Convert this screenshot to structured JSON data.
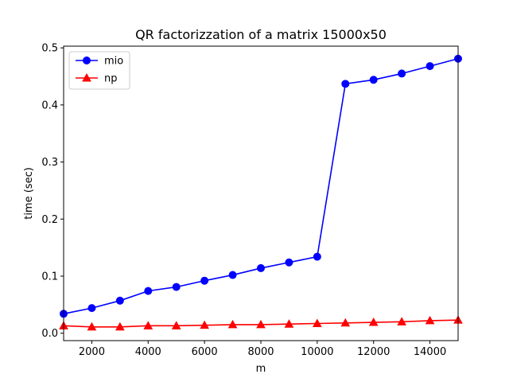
{
  "chart_data": {
    "type": "line",
    "title": "QR factorizzation of a matrix 15000x50",
    "xlabel": "m",
    "ylabel": "time (sec)",
    "xlim": [
      1000,
      15000
    ],
    "ylim": [
      -0.013,
      0.503
    ],
    "xticks": [
      2000,
      4000,
      6000,
      8000,
      10000,
      12000,
      14000
    ],
    "xtick_labels": [
      "2000",
      "4000",
      "6000",
      "8000",
      "10000",
      "12000",
      "14000"
    ],
    "yticks": [
      0.0,
      0.1,
      0.2,
      0.3,
      0.4,
      0.5
    ],
    "ytick_labels": [
      "0.0",
      "0.1",
      "0.2",
      "0.3",
      "0.4",
      "0.5"
    ],
    "grid": false,
    "legend_position": "top-left",
    "x": [
      1000,
      2000,
      3000,
      4000,
      5000,
      6000,
      7000,
      8000,
      9000,
      10000,
      11000,
      12000,
      13000,
      14000,
      15000
    ],
    "series": [
      {
        "name": "mio",
        "color": "#0000ff",
        "marker": "circle",
        "values": [
          0.034,
          0.044,
          0.057,
          0.074,
          0.081,
          0.092,
          0.102,
          0.114,
          0.124,
          0.134,
          0.437,
          0.444,
          0.455,
          0.468,
          0.481
        ]
      },
      {
        "name": "np",
        "color": "#ff0000",
        "marker": "triangle",
        "values": [
          0.013,
          0.011,
          0.011,
          0.013,
          0.013,
          0.014,
          0.015,
          0.015,
          0.016,
          0.017,
          0.018,
          0.019,
          0.02,
          0.022,
          0.023
        ]
      }
    ]
  }
}
